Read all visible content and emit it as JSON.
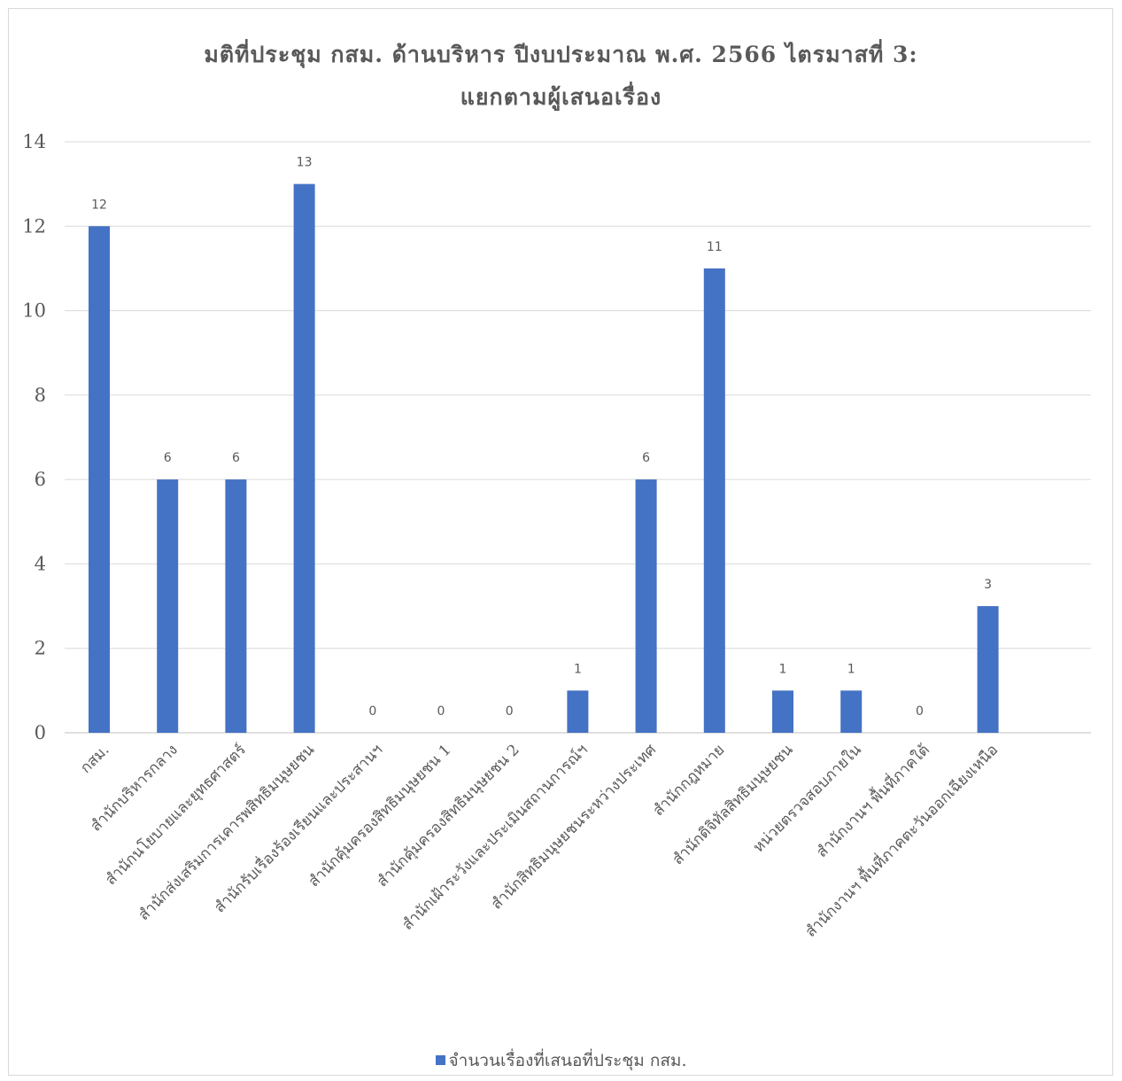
{
  "chart_data": {
    "type": "bar",
    "title_line1": "มติที่ประชุม กสม. ด้านบริหาร ปีงบประมาณ พ.ศ. 2566 ไตรมาสที่ 3:",
    "title_line2": "แยกตามผู้เสนอเรื่อง",
    "categories": [
      "กสม.",
      "สำนักบริหารกลาง",
      "สำนักนโยบายและยุทธศาสตร์",
      "สำนักส่งเสริมการเคารพสิทธิมนุษยชน",
      "สำนักรับเรื่องร้องเรียนและประสานฯ",
      "สำนักคุ้มครองสิทธิมนุษยชน 1",
      "สำนักคุ้มครองสิทธิมนุษยชน 2",
      "สำนักเฝ้าระวังและประเมินสถานการณ์ฯ",
      "สำนักสิทธิมนุษยชนระหว่างประเทศ",
      "สำนักกฎหมาย",
      "สำนักดิจิทัลสิทธิมนุษยชน",
      "หน่วยตรวจสอบภายใน",
      "สำนักงานฯ พื้นที่ภาคใต้",
      "สำนักงานฯ พื้นที่ภาคตะวันออกเฉียงเหนือ"
    ],
    "series": [
      {
        "name": "จำนวนเรื่องที่เสนอที่ประชุม กสม.",
        "values": [
          12,
          6,
          6,
          13,
          0,
          0,
          0,
          1,
          6,
          11,
          1,
          1,
          0,
          3
        ]
      }
    ],
    "ylim": [
      0,
      14
    ],
    "yticks": [
      0,
      2,
      4,
      6,
      8,
      10,
      12,
      14
    ],
    "grid": true,
    "legend_position": "bottom",
    "bar_color": "#4472c4"
  }
}
